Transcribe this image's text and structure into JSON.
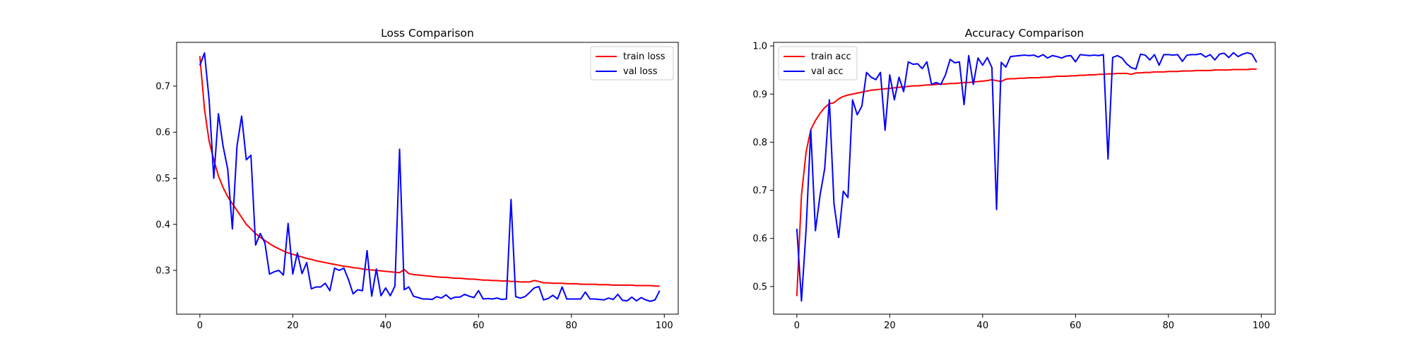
{
  "charts": [
    {
      "type": "line",
      "title": "Loss Comparison",
      "xlabel": "",
      "ylabel": "",
      "xlim": [
        -5,
        103
      ],
      "ylim": [
        0.205,
        0.795
      ],
      "xticks": [
        0,
        20,
        40,
        60,
        80,
        100
      ],
      "yticks": [
        0.3,
        0.4,
        0.5,
        0.6,
        0.7
      ],
      "ytick_labels": [
        "0.3",
        "0.4",
        "0.5",
        "0.6",
        "0.7"
      ],
      "legend_position": "top-right",
      "series": [
        {
          "name": "train loss",
          "color": "#ff0000",
          "values": [
            0.765,
            0.65,
            0.58,
            0.54,
            0.505,
            0.48,
            0.46,
            0.445,
            0.43,
            0.415,
            0.4,
            0.39,
            0.38,
            0.372,
            0.365,
            0.358,
            0.352,
            0.347,
            0.342,
            0.338,
            0.335,
            0.332,
            0.329,
            0.326,
            0.324,
            0.321,
            0.319,
            0.317,
            0.315,
            0.313,
            0.311,
            0.309,
            0.308,
            0.306,
            0.305,
            0.303,
            0.302,
            0.301,
            0.3,
            0.299,
            0.298,
            0.297,
            0.296,
            0.295,
            0.302,
            0.293,
            0.291,
            0.29,
            0.289,
            0.288,
            0.287,
            0.286,
            0.285,
            0.285,
            0.284,
            0.283,
            0.283,
            0.282,
            0.281,
            0.281,
            0.28,
            0.279,
            0.279,
            0.278,
            0.278,
            0.277,
            0.277,
            0.276,
            0.276,
            0.275,
            0.275,
            0.275,
            0.278,
            0.276,
            0.273,
            0.273,
            0.272,
            0.272,
            0.272,
            0.271,
            0.271,
            0.271,
            0.27,
            0.27,
            0.27,
            0.27,
            0.269,
            0.269,
            0.269,
            0.268,
            0.268,
            0.268,
            0.268,
            0.268,
            0.267,
            0.267,
            0.267,
            0.267,
            0.266,
            0.266
          ]
        },
        {
          "name": "val loss",
          "color": "#0000ff",
          "values": [
            0.745,
            0.772,
            0.67,
            0.5,
            0.64,
            0.57,
            0.52,
            0.39,
            0.57,
            0.635,
            0.54,
            0.55,
            0.355,
            0.38,
            0.36,
            0.292,
            0.297,
            0.3,
            0.29,
            0.402,
            0.292,
            0.338,
            0.293,
            0.317,
            0.26,
            0.264,
            0.264,
            0.272,
            0.256,
            0.305,
            0.3,
            0.305,
            0.28,
            0.249,
            0.258,
            0.256,
            0.343,
            0.244,
            0.303,
            0.245,
            0.262,
            0.245,
            0.266,
            0.563,
            0.258,
            0.264,
            0.244,
            0.241,
            0.238,
            0.238,
            0.237,
            0.243,
            0.24,
            0.247,
            0.238,
            0.242,
            0.242,
            0.248,
            0.244,
            0.241,
            0.256,
            0.238,
            0.239,
            0.238,
            0.24,
            0.237,
            0.238,
            0.454,
            0.243,
            0.24,
            0.243,
            0.252,
            0.262,
            0.265,
            0.236,
            0.239,
            0.246,
            0.238,
            0.264,
            0.238,
            0.238,
            0.238,
            0.238,
            0.253,
            0.238,
            0.238,
            0.237,
            0.236,
            0.24,
            0.237,
            0.248,
            0.235,
            0.234,
            0.242,
            0.234,
            0.241,
            0.236,
            0.233,
            0.236,
            0.256
          ]
        }
      ]
    },
    {
      "type": "line",
      "title": "Accuracy Comparison",
      "xlabel": "",
      "ylabel": "",
      "xlim": [
        -5,
        103
      ],
      "ylim": [
        0.4425,
        1.0075
      ],
      "xticks": [
        0,
        20,
        40,
        60,
        80,
        100
      ],
      "yticks": [
        0.5,
        0.6,
        0.7,
        0.8,
        0.9,
        1.0
      ],
      "ytick_labels": [
        "0.5",
        "0.6",
        "0.7",
        "0.8",
        "0.9",
        "1.0"
      ],
      "legend_position": "top-left",
      "series": [
        {
          "name": "train acc",
          "color": "#ff0000",
          "values": [
            0.48,
            0.69,
            0.78,
            0.826,
            0.845,
            0.86,
            0.872,
            0.88,
            0.882,
            0.89,
            0.895,
            0.898,
            0.9,
            0.902,
            0.904,
            0.906,
            0.908,
            0.909,
            0.91,
            0.911,
            0.912,
            0.913,
            0.914,
            0.915,
            0.916,
            0.917,
            0.917,
            0.918,
            0.919,
            0.919,
            0.92,
            0.921,
            0.921,
            0.922,
            0.922,
            0.923,
            0.924,
            0.924,
            0.925,
            0.926,
            0.927,
            0.928,
            0.93,
            0.928,
            0.926,
            0.931,
            0.932,
            0.932,
            0.933,
            0.933,
            0.934,
            0.934,
            0.934,
            0.935,
            0.935,
            0.936,
            0.937,
            0.937,
            0.937,
            0.938,
            0.938,
            0.939,
            0.939,
            0.94,
            0.94,
            0.941,
            0.941,
            0.942,
            0.942,
            0.943,
            0.943,
            0.943,
            0.941,
            0.944,
            0.944,
            0.945,
            0.945,
            0.946,
            0.946,
            0.946,
            0.947,
            0.947,
            0.947,
            0.948,
            0.948,
            0.948,
            0.949,
            0.949,
            0.949,
            0.949,
            0.95,
            0.95,
            0.95,
            0.95,
            0.951,
            0.951,
            0.951,
            0.951,
            0.952,
            0.952
          ]
        },
        {
          "name": "val acc",
          "color": "#0000ff",
          "values": [
            0.62,
            0.47,
            0.62,
            0.825,
            0.616,
            0.69,
            0.745,
            0.888,
            0.672,
            0.602,
            0.698,
            0.685,
            0.888,
            0.857,
            0.875,
            0.945,
            0.935,
            0.93,
            0.945,
            0.825,
            0.94,
            0.888,
            0.935,
            0.905,
            0.967,
            0.962,
            0.963,
            0.953,
            0.967,
            0.92,
            0.924,
            0.92,
            0.94,
            0.972,
            0.965,
            0.967,
            0.878,
            0.98,
            0.92,
            0.975,
            0.96,
            0.976,
            0.955,
            0.66,
            0.966,
            0.956,
            0.978,
            0.979,
            0.98,
            0.981,
            0.98,
            0.981,
            0.977,
            0.982,
            0.975,
            0.98,
            0.978,
            0.975,
            0.979,
            0.98,
            0.967,
            0.982,
            0.981,
            0.98,
            0.981,
            0.98,
            0.982,
            0.765,
            0.976,
            0.98,
            0.975,
            0.963,
            0.955,
            0.952,
            0.983,
            0.981,
            0.971,
            0.982,
            0.96,
            0.982,
            0.982,
            0.981,
            0.982,
            0.968,
            0.981,
            0.982,
            0.982,
            0.984,
            0.977,
            0.982,
            0.971,
            0.983,
            0.985,
            0.976,
            0.986,
            0.978,
            0.983,
            0.986,
            0.983,
            0.966
          ]
        }
      ]
    }
  ]
}
